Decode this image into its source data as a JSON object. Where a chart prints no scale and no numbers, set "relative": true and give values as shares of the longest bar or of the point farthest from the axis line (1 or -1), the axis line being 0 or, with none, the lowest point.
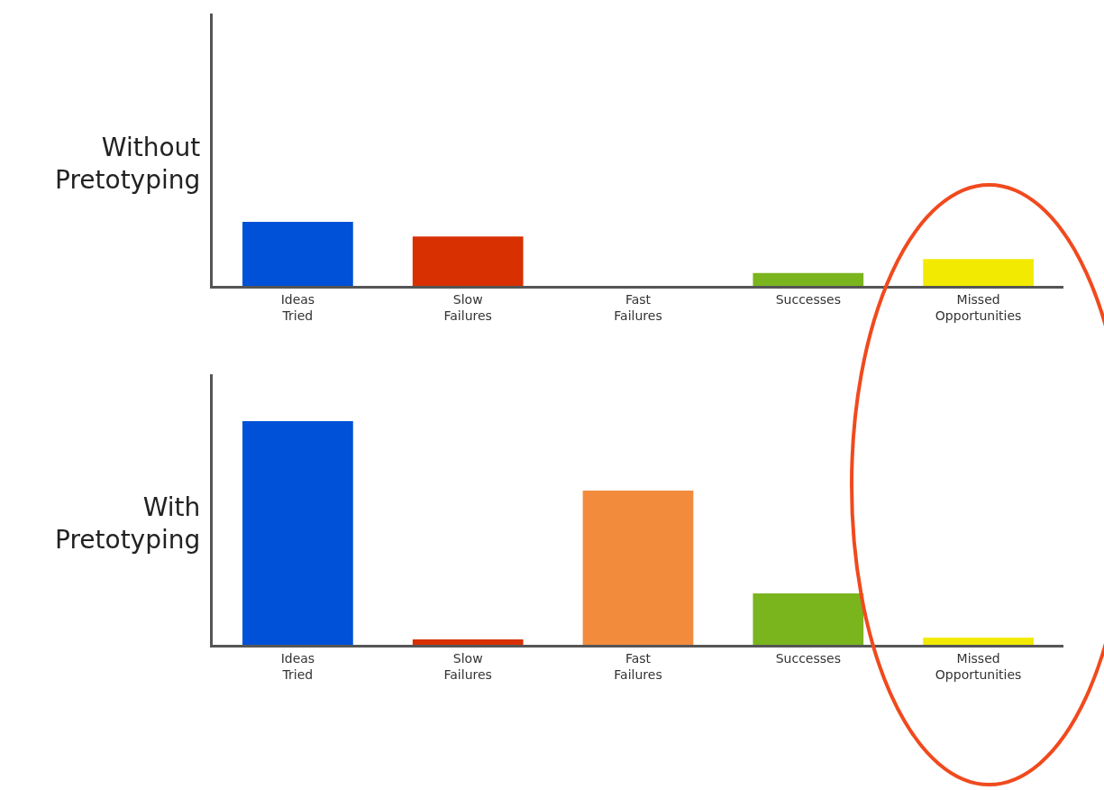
{
  "chart_data": [
    {
      "type": "bar",
      "ylabel": "Without\nPretotyping",
      "relative": true,
      "tick_labels": "x",
      "legend": false,
      "categories": [
        "Ideas\nTried",
        "Slow\nFailures",
        "Fast\nFailures",
        "Successes",
        "Missed\nOpportunities"
      ],
      "values": [
        1,
        0.77,
        0,
        0.2,
        0.42
      ],
      "colors": [
        "#0050d8",
        "#d83000",
        "#f28c3c",
        "#7ab51d",
        "#f2ea00"
      ]
    },
    {
      "type": "bar",
      "ylabel": "With\nPretotyping",
      "relative": true,
      "tick_labels": "x",
      "legend": false,
      "categories": [
        "Ideas\nTried",
        "Slow\nFailures",
        "Fast\nFailures",
        "Successes",
        "Missed\nOpportunities"
      ],
      "values": [
        1,
        0.024,
        0.69,
        0.23,
        0.032
      ],
      "colors": [
        "#0050d8",
        "#d83000",
        "#f28c3c",
        "#7ab51d",
        "#f2ea00"
      ]
    }
  ]
}
